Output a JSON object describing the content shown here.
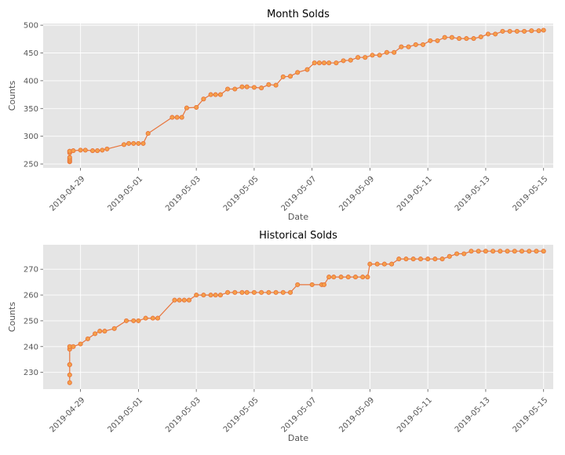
{
  "chart_data": [
    {
      "type": "line",
      "title": "Month Solds",
      "xlabel": "Date",
      "ylabel": "Counts",
      "ylim": [
        243,
        503
      ],
      "xlim": [
        "2019-04-27T17:00",
        "2019-05-15T08:00"
      ],
      "xticks": [
        "2019-04-29",
        "2019-05-01",
        "2019-05-03",
        "2019-05-05",
        "2019-05-07",
        "2019-05-09",
        "2019-05-11",
        "2019-05-13",
        "2019-05-15"
      ],
      "yticks": [
        250,
        300,
        350,
        400,
        450,
        500
      ],
      "grid": true,
      "colors": {
        "line": "#e8743b",
        "marker_fill": "#f5a04a",
        "marker_edge": "#e8743b",
        "plot_bg": "#e5e5e5",
        "grid": "#ffffff",
        "text": "#555555",
        "title": "#000000"
      },
      "x": [
        "2019-04-28T15:00",
        "2019-04-28T15:00",
        "2019-04-28T15:00",
        "2019-04-28T15:00",
        "2019-04-28T15:00",
        "2019-04-28T15:00",
        "2019-04-28T15:00",
        "2019-04-28T18:00",
        "2019-04-29T00:00",
        "2019-04-29T04:00",
        "2019-04-29T10:00",
        "2019-04-29T14:00",
        "2019-04-29T18:00",
        "2019-04-29T22:00",
        "2019-04-30T12:00",
        "2019-04-30T16:00",
        "2019-04-30T20:00",
        "2019-05-01T00:00",
        "2019-05-01T04:00",
        "2019-05-01T08:00",
        "2019-05-02T04:00",
        "2019-05-02T08:00",
        "2019-05-02T12:00",
        "2019-05-02T16:00",
        "2019-05-03T00:00",
        "2019-05-03T06:00",
        "2019-05-03T12:00",
        "2019-05-03T16:00",
        "2019-05-03T20:00",
        "2019-05-04T02:00",
        "2019-05-04T08:00",
        "2019-05-04T14:00",
        "2019-05-04T18:00",
        "2019-05-05T00:00",
        "2019-05-05T06:00",
        "2019-05-05T12:00",
        "2019-05-05T18:00",
        "2019-05-06T00:00",
        "2019-05-06T06:00",
        "2019-05-06T12:00",
        "2019-05-06T20:00",
        "2019-05-07T02:00",
        "2019-05-07T06:00",
        "2019-05-07T10:00",
        "2019-05-07T14:00",
        "2019-05-07T20:00",
        "2019-05-08T02:00",
        "2019-05-08T08:00",
        "2019-05-08T14:00",
        "2019-05-08T20:00",
        "2019-05-09T02:00",
        "2019-05-09T08:00",
        "2019-05-09T14:00",
        "2019-05-09T20:00",
        "2019-05-10T02:00",
        "2019-05-10T08:00",
        "2019-05-10T14:00",
        "2019-05-10T20:00",
        "2019-05-11T02:00",
        "2019-05-11T08:00",
        "2019-05-11T14:00",
        "2019-05-11T20:00",
        "2019-05-12T02:00",
        "2019-05-12T08:00",
        "2019-05-12T14:00",
        "2019-05-12T20:00",
        "2019-05-13T02:00",
        "2019-05-13T08:00",
        "2019-05-13T14:00",
        "2019-05-13T20:00",
        "2019-05-14T02:00",
        "2019-05-14T08:00",
        "2019-05-14T14:00",
        "2019-05-14T20:00",
        "2019-05-15T00:00"
      ],
      "series": [
        {
          "values": [
            254,
            256,
            259,
            262,
            270,
            273,
            273,
            274,
            275,
            275,
            274,
            274,
            275,
            277,
            285,
            287,
            287,
            287,
            287,
            305,
            334,
            334,
            334,
            351,
            352,
            367,
            375,
            375,
            375,
            385,
            385,
            389,
            389,
            388,
            387,
            393,
            392,
            407,
            408,
            415,
            420,
            432,
            432,
            432,
            432,
            432,
            436,
            437,
            442,
            442,
            446,
            446,
            451,
            451,
            461,
            461,
            465,
            465,
            472,
            472,
            478,
            478,
            476,
            476,
            476,
            479,
            484,
            484,
            489,
            489,
            489,
            489,
            490,
            490,
            491
          ]
        }
      ]
    },
    {
      "type": "line",
      "title": "Historical Solds",
      "xlabel": "Date",
      "ylabel": "Counts",
      "ylim": [
        223.5,
        279.5
      ],
      "xlim": [
        "2019-04-27T17:00",
        "2019-05-15T08:00"
      ],
      "xticks": [
        "2019-04-29",
        "2019-05-01",
        "2019-05-03",
        "2019-05-05",
        "2019-05-07",
        "2019-05-09",
        "2019-05-11",
        "2019-05-13",
        "2019-05-15"
      ],
      "yticks": [
        230,
        240,
        250,
        260,
        270
      ],
      "grid": true,
      "colors": {
        "line": "#e8743b",
        "marker_fill": "#f5a04a",
        "marker_edge": "#e8743b",
        "plot_bg": "#e5e5e5",
        "grid": "#ffffff",
        "text": "#555555",
        "title": "#000000"
      },
      "x": [
        "2019-04-28T15:00",
        "2019-04-28T15:00",
        "2019-04-28T15:00",
        "2019-04-28T15:00",
        "2019-04-28T15:00",
        "2019-04-28T15:00",
        "2019-04-28T18:00",
        "2019-04-29T00:00",
        "2019-04-29T06:00",
        "2019-04-29T12:00",
        "2019-04-29T16:00",
        "2019-04-29T20:00",
        "2019-04-30T04:00",
        "2019-04-30T14:00",
        "2019-04-30T20:00",
        "2019-05-01T00:00",
        "2019-05-01T06:00",
        "2019-05-01T12:00",
        "2019-05-01T16:00",
        "2019-05-02T06:00",
        "2019-05-02T10:00",
        "2019-05-02T14:00",
        "2019-05-02T18:00",
        "2019-05-03T00:00",
        "2019-05-03T06:00",
        "2019-05-03T12:00",
        "2019-05-03T16:00",
        "2019-05-03T20:00",
        "2019-05-04T02:00",
        "2019-05-04T08:00",
        "2019-05-04T14:00",
        "2019-05-04T18:00",
        "2019-05-05T00:00",
        "2019-05-05T06:00",
        "2019-05-05T12:00",
        "2019-05-05T18:00",
        "2019-05-06T00:00",
        "2019-05-06T06:00",
        "2019-05-06T12:00",
        "2019-05-07T00:00",
        "2019-05-07T08:00",
        "2019-05-07T10:00",
        "2019-05-07T14:00",
        "2019-05-07T18:00",
        "2019-05-08T00:00",
        "2019-05-08T06:00",
        "2019-05-08T12:00",
        "2019-05-08T18:00",
        "2019-05-08T22:00",
        "2019-05-09T00:00",
        "2019-05-09T06:00",
        "2019-05-09T12:00",
        "2019-05-09T18:00",
        "2019-05-10T00:00",
        "2019-05-10T06:00",
        "2019-05-10T12:00",
        "2019-05-10T18:00",
        "2019-05-11T00:00",
        "2019-05-11T06:00",
        "2019-05-11T12:00",
        "2019-05-11T18:00",
        "2019-05-12T00:00",
        "2019-05-12T06:00",
        "2019-05-12T12:00",
        "2019-05-12T18:00",
        "2019-05-13T00:00",
        "2019-05-13T06:00",
        "2019-05-13T12:00",
        "2019-05-13T18:00",
        "2019-05-14T00:00",
        "2019-05-14T06:00",
        "2019-05-14T12:00",
        "2019-05-14T18:00",
        "2019-05-15T00:00"
      ],
      "series": [
        {
          "values": [
            226,
            229,
            233,
            233,
            239,
            240,
            240,
            241,
            243,
            245,
            246,
            246,
            247,
            250,
            250,
            250,
            251,
            251,
            251,
            258,
            258,
            258,
            258,
            260,
            260,
            260,
            260,
            260,
            261,
            261,
            261,
            261,
            261,
            261,
            261,
            261,
            261,
            261,
            264,
            264,
            264,
            264,
            267,
            267,
            267,
            267,
            267,
            267,
            267,
            272,
            272,
            272,
            272,
            274,
            274,
            274,
            274,
            274,
            274,
            274,
            275,
            276,
            276,
            277,
            277,
            277,
            277,
            277,
            277,
            277,
            277,
            277,
            277,
            277
          ]
        }
      ]
    }
  ]
}
